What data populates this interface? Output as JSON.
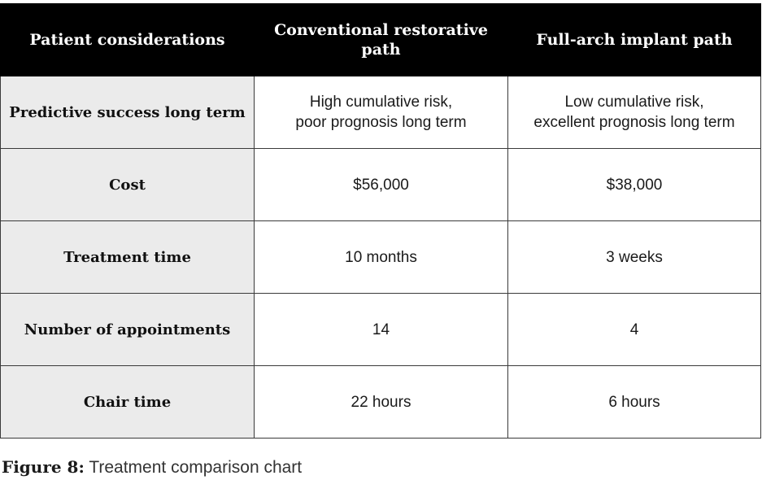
{
  "table": {
    "headers": [
      "Patient considerations",
      "Conventional restorative path",
      "Full-arch implant path"
    ],
    "rows": [
      {
        "label": "Predictive success long term",
        "conventional_line1": "High cumulative risk,",
        "conventional_line2": "poor prognosis long term",
        "implant_line1": "Low cumulative risk,",
        "implant_line2": "excellent prognosis long term"
      },
      {
        "label": "Cost",
        "conventional": "$56,000",
        "implant": "$38,000"
      },
      {
        "label": "Treatment time",
        "conventional": "10 months",
        "implant": "3 weeks"
      },
      {
        "label": "Number of appointments",
        "conventional": "14",
        "implant": "4"
      },
      {
        "label": "Chair time",
        "conventional": "22 hours",
        "implant": "6 hours"
      }
    ]
  },
  "caption": {
    "lead": "Figure 8:",
    "text": " Treatment comparison chart"
  },
  "colors": {
    "header_bg": "#000000",
    "header_text": "#ffffff",
    "rowhead_bg": "#ebebeb",
    "border": "#3a3a3a"
  }
}
